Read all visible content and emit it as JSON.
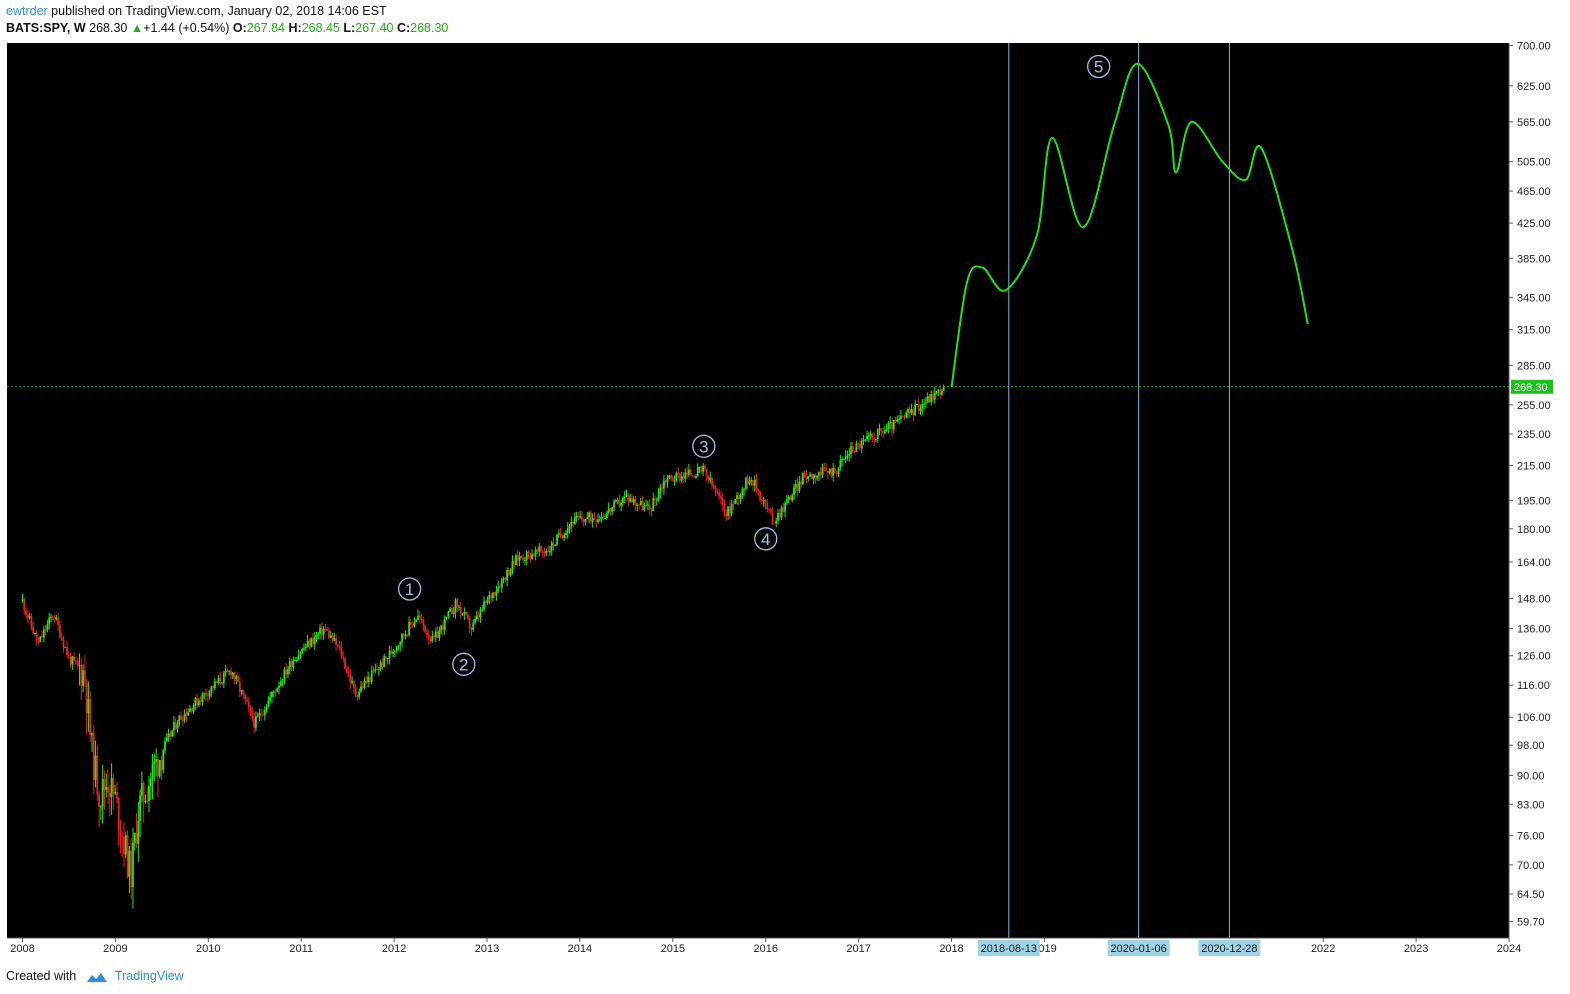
{
  "header": {
    "author": "ewtrder",
    "published_text": "published on TradingView.com, January 02, 2018 14:06 EST",
    "symbol": "BATS:SPY, W",
    "last": "268.30",
    "change": "+1.44 (+0.54%)",
    "o_label": "O:",
    "o_value": "267.84",
    "h_label": "H:",
    "h_value": "268.45",
    "l_label": "L:",
    "l_value": "267.40",
    "c_label": "C:",
    "c_value": "268.30"
  },
  "footer": {
    "created_with": "Created with",
    "brand": "TradingView"
  },
  "colors": {
    "background": "#000000",
    "up_candle": "#22e81a",
    "down_candle": "#e8202a",
    "projection": "#1fe01f",
    "vertical_lines": "#7fb7d4",
    "date_badge": "#9fd4e6",
    "price_badge": "#19c21a"
  },
  "chart_data": {
    "type": "candlestick",
    "scale": "log",
    "x_ticks": [
      "2008",
      "2009",
      "2010",
      "2011",
      "2012",
      "2013",
      "2014",
      "2015",
      "2016",
      "2017",
      "2018",
      "2019",
      "2022",
      "2023",
      "2024"
    ],
    "y_ticks": [
      "700.00",
      "625.00",
      "565.00",
      "505.00",
      "465.00",
      "425.00",
      "385.00",
      "345.00",
      "315.00",
      "285.00",
      "255.00",
      "235.00",
      "215.00",
      "195.00",
      "180.00",
      "164.00",
      "148.00",
      "136.00",
      "126.00",
      "116.00",
      "106.00",
      "98.00",
      "90.00",
      "83.00",
      "76.00",
      "70.00",
      "64.50",
      "59.70"
    ],
    "y_range": [
      57,
      705
    ],
    "x_range": [
      "2007-11",
      "2024-01"
    ],
    "last_price": 268.3,
    "last_price_label": "268.30",
    "series": [
      {
        "points": [
          {
            "x": "2008-01",
            "y": 147
          },
          {
            "x": "2008-03",
            "y": 130
          },
          {
            "x": "2008-05",
            "y": 142
          },
          {
            "x": "2008-07",
            "y": 125
          },
          {
            "x": "2008-09",
            "y": 120
          },
          {
            "x": "2008-10",
            "y": 96
          },
          {
            "x": "2008-11",
            "y": 85
          },
          {
            "x": "2008-12",
            "y": 89
          },
          {
            "x": "2009-01",
            "y": 84
          },
          {
            "x": "2009-03",
            "y": 68
          },
          {
            "x": "2009-04",
            "y": 82
          },
          {
            "x": "2009-06",
            "y": 92
          },
          {
            "x": "2009-09",
            "y": 105
          },
          {
            "x": "2009-12",
            "y": 112
          },
          {
            "x": "2010-04",
            "y": 121
          },
          {
            "x": "2010-07",
            "y": 104
          },
          {
            "x": "2010-09",
            "y": 112
          },
          {
            "x": "2010-12",
            "y": 125
          },
          {
            "x": "2011-04",
            "y": 136
          },
          {
            "x": "2011-06",
            "y": 128
          },
          {
            "x": "2011-08",
            "y": 113
          },
          {
            "x": "2011-10",
            "y": 119
          },
          {
            "x": "2011-12",
            "y": 125
          },
          {
            "x": "2012-04",
            "y": 141
          },
          {
            "x": "2012-06",
            "y": 131
          },
          {
            "x": "2012-09",
            "y": 146
          },
          {
            "x": "2012-11",
            "y": 136
          },
          {
            "x": "2013-01",
            "y": 147
          },
          {
            "x": "2013-05",
            "y": 166
          },
          {
            "x": "2013-09",
            "y": 170
          },
          {
            "x": "2013-12",
            "y": 184
          },
          {
            "x": "2014-04",
            "y": 187
          },
          {
            "x": "2014-07",
            "y": 197
          },
          {
            "x": "2014-10",
            "y": 190
          },
          {
            "x": "2014-12",
            "y": 207
          },
          {
            "x": "2015-05",
            "y": 212
          },
          {
            "x": "2015-08",
            "y": 188
          },
          {
            "x": "2015-11",
            "y": 209
          },
          {
            "x": "2016-02",
            "y": 184
          },
          {
            "x": "2016-06",
            "y": 209
          },
          {
            "x": "2016-10",
            "y": 212
          },
          {
            "x": "2016-12",
            "y": 225
          },
          {
            "x": "2017-06",
            "y": 243
          },
          {
            "x": "2017-12",
            "y": 268
          }
        ]
      },
      {
        "points": [
          {
            "x": "2018-01",
            "y": 268
          },
          {
            "x": "2018-03",
            "y": 360
          },
          {
            "x": "2018-05",
            "y": 375
          },
          {
            "x": "2018-08",
            "y": 352
          },
          {
            "x": "2018-12",
            "y": 410
          },
          {
            "x": "2019-02",
            "y": 540
          },
          {
            "x": "2019-06",
            "y": 420
          },
          {
            "x": "2019-10",
            "y": 560
          },
          {
            "x": "2020-01",
            "y": 665
          },
          {
            "x": "2020-05",
            "y": 560
          },
          {
            "x": "2020-06",
            "y": 490
          },
          {
            "x": "2020-08",
            "y": 565
          },
          {
            "x": "2020-12",
            "y": 505
          },
          {
            "x": "2021-03",
            "y": 480
          },
          {
            "x": "2021-05",
            "y": 525
          },
          {
            "x": "2021-09",
            "y": 395
          },
          {
            "x": "2021-11",
            "y": 320
          }
        ]
      }
    ],
    "annotations": [
      {
        "label": "1",
        "x": "2012-03",
        "y": 152
      },
      {
        "label": "2",
        "x": "2012-10",
        "y": 123
      },
      {
        "label": "3",
        "x": "2015-05",
        "y": 227
      },
      {
        "label": "4",
        "x": "2016-01",
        "y": 175
      },
      {
        "label": "5",
        "x": "2019-08",
        "y": 660
      }
    ],
    "vertical_lines": [
      "2018-08-13",
      "2020-01-06",
      "2020-12-28"
    ]
  }
}
